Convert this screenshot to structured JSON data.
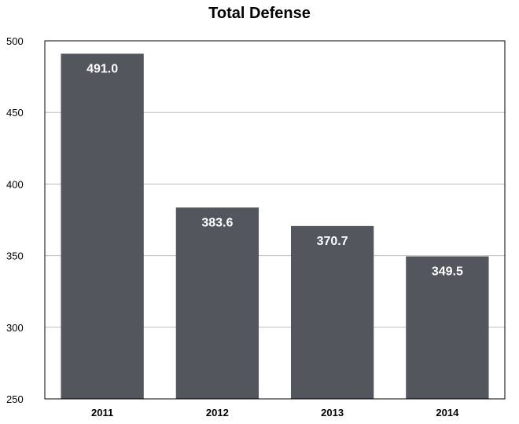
{
  "chart_data": {
    "type": "bar",
    "title": "Total Defense",
    "categories": [
      "2011",
      "2012",
      "2013",
      "2014"
    ],
    "values": [
      491.0,
      383.6,
      370.7,
      349.5
    ],
    "data_labels": [
      "491.0",
      "383.6",
      "370.7",
      "349.5"
    ],
    "ylim": [
      250,
      500
    ],
    "yticks": [
      250,
      300,
      350,
      400,
      450,
      500
    ],
    "grid": true,
    "bar_color": "#54565e",
    "grid_color": "#bdbdbd"
  }
}
